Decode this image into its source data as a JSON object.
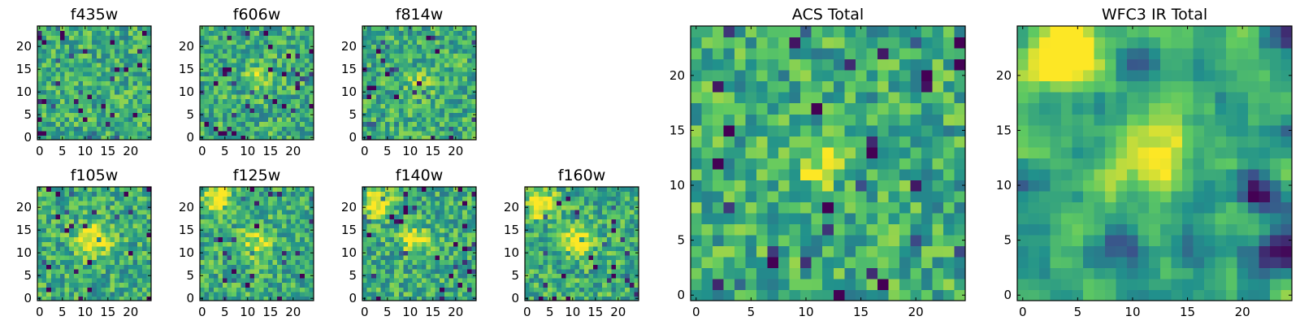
{
  "chart_data": [
    {
      "type": "heatmap",
      "title": "f435w",
      "grid": "25x25",
      "xticks": [
        "0",
        "5",
        "10",
        "15",
        "20"
      ],
      "yticks": [
        "0",
        "5",
        "10",
        "15",
        "20"
      ],
      "colormap": [
        "#440154",
        "#3b528b",
        "#21918c",
        "#5ec962",
        "#fde725"
      ],
      "seed": 11,
      "features": []
    },
    {
      "type": "heatmap",
      "title": "f606w",
      "grid": "25x25",
      "xticks": [
        "0",
        "5",
        "10",
        "15",
        "20"
      ],
      "yticks": [
        "0",
        "5",
        "10",
        "15",
        "20"
      ],
      "colormap": [
        "#440154",
        "#3b528b",
        "#21918c",
        "#5ec962",
        "#fde725"
      ],
      "seed": 23,
      "features": [
        {
          "cx": 12,
          "cy": 13,
          "amp": 0.25,
          "r": 2
        }
      ]
    },
    {
      "type": "heatmap",
      "title": "f814w",
      "grid": "25x25",
      "xticks": [
        "0",
        "5",
        "10",
        "15",
        "20"
      ],
      "yticks": [
        "0",
        "5",
        "10",
        "15",
        "20"
      ],
      "colormap": [
        "#440154",
        "#3b528b",
        "#21918c",
        "#5ec962",
        "#fde725"
      ],
      "seed": 37,
      "features": [
        {
          "cx": 12,
          "cy": 12,
          "amp": 0.2,
          "r": 2
        }
      ]
    },
    {
      "type": "heatmap",
      "title": "f105w",
      "grid": "25x25",
      "xticks": [
        "0",
        "5",
        "10",
        "15",
        "20"
      ],
      "yticks": [
        "0",
        "5",
        "10",
        "15",
        "20"
      ],
      "colormap": [
        "#440154",
        "#3b528b",
        "#21918c",
        "#5ec962",
        "#fde725"
      ],
      "seed": 41,
      "features": [
        {
          "cx": 12,
          "cy": 13,
          "amp": 0.45,
          "r": 2.5
        }
      ]
    },
    {
      "type": "heatmap",
      "title": "f125w",
      "grid": "25x25",
      "xticks": [
        "0",
        "5",
        "10",
        "15",
        "20"
      ],
      "yticks": [
        "0",
        "5",
        "10",
        "15",
        "20"
      ],
      "colormap": [
        "#440154",
        "#3b528b",
        "#21918c",
        "#5ec962",
        "#fde725"
      ],
      "seed": 53,
      "features": [
        {
          "cx": 3,
          "cy": 22,
          "amp": 0.45,
          "r": 2
        },
        {
          "cx": 12,
          "cy": 12,
          "amp": 0.3,
          "r": 2.5
        }
      ]
    },
    {
      "type": "heatmap",
      "title": "f140w",
      "grid": "25x25",
      "xticks": [
        "0",
        "5",
        "10",
        "15",
        "20"
      ],
      "yticks": [
        "0",
        "5",
        "10",
        "15",
        "20"
      ],
      "colormap": [
        "#440154",
        "#3b528b",
        "#21918c",
        "#5ec962",
        "#fde725"
      ],
      "seed": 67,
      "features": [
        {
          "cx": 3,
          "cy": 21,
          "amp": 0.5,
          "r": 2
        },
        {
          "cx": 11,
          "cy": 13,
          "amp": 0.4,
          "r": 2
        }
      ]
    },
    {
      "type": "heatmap",
      "title": "f160w",
      "grid": "25x25",
      "xticks": [
        "0",
        "5",
        "10",
        "15",
        "20"
      ],
      "yticks": [
        "0",
        "5",
        "10",
        "15",
        "20"
      ],
      "colormap": [
        "#440154",
        "#3b528b",
        "#21918c",
        "#5ec962",
        "#fde725"
      ],
      "seed": 79,
      "features": [
        {
          "cx": 3,
          "cy": 21,
          "amp": 0.55,
          "r": 2
        },
        {
          "cx": 11,
          "cy": 13,
          "amp": 0.5,
          "r": 2
        }
      ]
    },
    {
      "type": "heatmap",
      "title": "ACS Total",
      "grid": "25x25",
      "xticks": [
        "0",
        "5",
        "10",
        "15",
        "20"
      ],
      "yticks": [
        "0",
        "5",
        "10",
        "15",
        "20"
      ],
      "colormap": [
        "#440154",
        "#3b528b",
        "#21918c",
        "#5ec962",
        "#fde725"
      ],
      "seed": 97,
      "features": [
        {
          "cx": 11,
          "cy": 12,
          "amp": 0.35,
          "r": 1.5
        }
      ]
    },
    {
      "type": "heatmap",
      "title": "WFC3 IR Total",
      "grid": "25x25",
      "xticks": [
        "0",
        "5",
        "10",
        "15",
        "20"
      ],
      "yticks": [
        "0",
        "5",
        "10",
        "15",
        "20"
      ],
      "colormap": [
        "#440154",
        "#3b528b",
        "#21918c",
        "#5ec962",
        "#fde725"
      ],
      "seed": 131,
      "smooth": true,
      "features": [
        {
          "cx": 3.5,
          "cy": 21.5,
          "amp": 0.6,
          "r": 2.2
        },
        {
          "cx": 12,
          "cy": 12.5,
          "amp": 0.6,
          "r": 2.4
        },
        {
          "cx": 23.5,
          "cy": 4,
          "amp": -0.7,
          "r": 1.4
        },
        {
          "cx": 21.5,
          "cy": 9,
          "amp": -0.55,
          "r": 1.2
        },
        {
          "cx": 9,
          "cy": 5,
          "amp": -0.45,
          "r": 1.3
        }
      ]
    }
  ]
}
